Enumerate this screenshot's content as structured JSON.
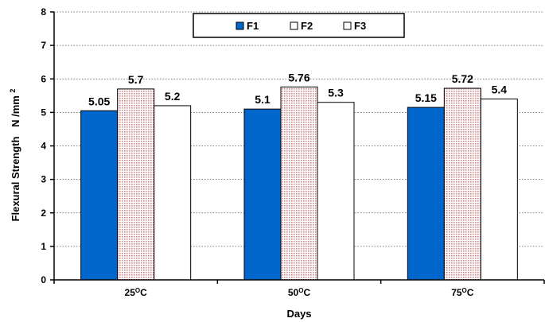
{
  "chart_data": {
    "type": "bar",
    "categories": [
      "25",
      "50",
      "75"
    ],
    "category_unit": "C",
    "category_unit_superscript": "O",
    "series": [
      {
        "name": "F1",
        "values": [
          5.05,
          5.1,
          5.15
        ],
        "color": "#0066cc",
        "pattern": "solid"
      },
      {
        "name": "F2",
        "values": [
          5.7,
          5.76,
          5.72
        ],
        "color": "#f3d6d6",
        "pattern": "dotted"
      },
      {
        "name": "F3",
        "values": [
          5.2,
          5.3,
          5.4
        ],
        "color": "#ffffff",
        "pattern": "none"
      }
    ],
    "data_labels": [
      [
        "5.05",
        "5.1",
        "5.15"
      ],
      [
        "5.7",
        "5.76",
        "5.72"
      ],
      [
        "5.2",
        "5.3",
        "5.4"
      ]
    ],
    "y_ticks": [
      0,
      1,
      2,
      3,
      4,
      5,
      6,
      7,
      8
    ],
    "ylim": [
      0,
      8
    ],
    "xlabel": "Days",
    "ylabel": "Flexural Strength",
    "ylabel_unit": "N /mm",
    "ylabel_unit_superscript": "2",
    "grid": "horizontal-dotted",
    "legend_position": "top-center"
  }
}
